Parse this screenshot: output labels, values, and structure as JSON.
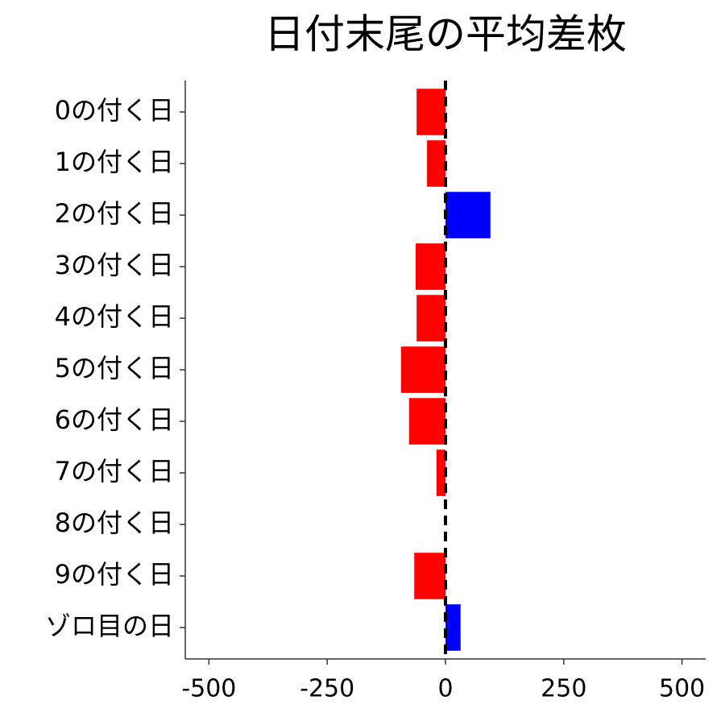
{
  "chart_data": {
    "type": "barh",
    "title": "日付末尾の平均差枚",
    "categories": [
      "0の付く日",
      "1の付く日",
      "2の付く日",
      "3の付く日",
      "4の付く日",
      "5の付く日",
      "6の付く日",
      "7の付く日",
      "8の付く日",
      "9の付く日",
      "ゾロ目の日"
    ],
    "values": [
      -61,
      -39,
      95,
      -63,
      -61,
      -94,
      -77,
      -19,
      0,
      -66,
      32
    ],
    "colors": [
      "#ff0000",
      "#ff0000",
      "#0000ff",
      "#ff0000",
      "#ff0000",
      "#ff0000",
      "#ff0000",
      "#ff0000",
      "#ff0000",
      "#ff0000",
      "#0000ff"
    ],
    "xlim": [
      -550,
      550
    ],
    "xticks": [
      -500,
      -250,
      0,
      250,
      500
    ],
    "grid": false
  }
}
